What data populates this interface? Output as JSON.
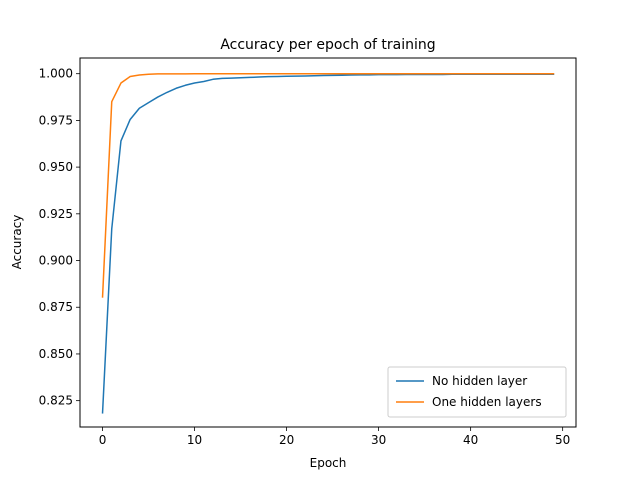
{
  "chart_data": {
    "type": "line",
    "title": "Accuracy per epoch of training",
    "xlabel": "Epoch",
    "ylabel": "Accuracy",
    "xlim": [
      -2.45,
      51.45
    ],
    "ylim": [
      0.8109,
      1.0084
    ],
    "xticks": [
      0,
      10,
      20,
      30,
      40,
      50
    ],
    "xtick_labels": [
      "0",
      "10",
      "20",
      "30",
      "40",
      "50"
    ],
    "yticks": [
      0.825,
      0.85,
      0.875,
      0.9,
      0.925,
      0.95,
      0.975,
      1.0
    ],
    "ytick_labels": [
      "0.825",
      "0.850",
      "0.875",
      "0.900",
      "0.925",
      "0.950",
      "0.975",
      "1.000"
    ],
    "grid": false,
    "legend_position": "lower-right",
    "x": [
      0,
      1,
      2,
      3,
      4,
      5,
      6,
      7,
      8,
      9,
      10,
      11,
      12,
      13,
      14,
      15,
      16,
      17,
      18,
      19,
      20,
      21,
      22,
      23,
      24,
      25,
      26,
      27,
      28,
      29,
      30,
      31,
      32,
      33,
      34,
      35,
      36,
      37,
      38,
      39,
      40,
      41,
      42,
      43,
      44,
      45,
      46,
      47,
      48,
      49
    ],
    "series": [
      {
        "name": "No hidden layer",
        "color": "#1f77b4",
        "values": [
          0.8185,
          0.917,
          0.964,
          0.9755,
          0.9815,
          0.9845,
          0.9875,
          0.99,
          0.9922,
          0.9938,
          0.995,
          0.9958,
          0.997,
          0.9975,
          0.9976,
          0.9978,
          0.998,
          0.9982,
          0.9984,
          0.9985,
          0.9986,
          0.9987,
          0.9988,
          0.9989,
          0.999,
          0.9991,
          0.9992,
          0.9993,
          0.9994,
          0.9994,
          0.9995,
          0.9995,
          0.9995,
          0.9996,
          0.9996,
          0.9996,
          0.9996,
          0.9996,
          0.9997,
          0.9997,
          0.9997,
          0.9997,
          0.9997,
          0.9997,
          0.9997,
          0.9997,
          0.9997,
          0.9997,
          0.9997,
          0.9997
        ]
      },
      {
        "name": "One hidden layers",
        "color": "#ff7f0e",
        "values": [
          0.8805,
          0.985,
          0.995,
          0.9985,
          0.9993,
          0.9997,
          0.9999,
          0.9999,
          0.9999,
          0.9999,
          1.0,
          1.0,
          1.0,
          1.0,
          1.0,
          1.0,
          1.0,
          1.0,
          1.0,
          1.0,
          1.0,
          1.0,
          1.0,
          1.0,
          1.0,
          1.0,
          1.0,
          1.0,
          1.0,
          1.0,
          1.0,
          1.0,
          1.0,
          1.0,
          1.0,
          1.0,
          1.0,
          1.0,
          1.0,
          1.0,
          1.0,
          1.0,
          1.0,
          1.0,
          1.0,
          1.0,
          1.0,
          1.0,
          1.0,
          1.0
        ]
      }
    ]
  }
}
